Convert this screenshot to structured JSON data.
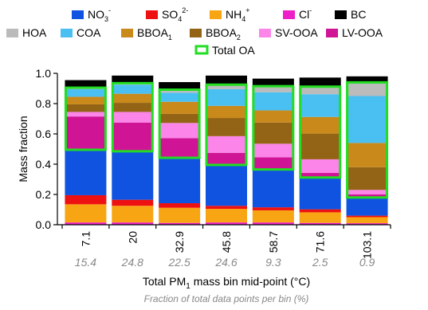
{
  "chart_data": {
    "type": "bar",
    "stacked": true,
    "categories": [
      "7.1",
      "20",
      "32.9",
      "45.8",
      "58.7",
      "71.6",
      "103.1"
    ],
    "category_fractions": [
      "15.4",
      "24.8",
      "22.5",
      "24.6",
      "9.3",
      "2.5",
      "0.9"
    ],
    "xlabel": {
      "prefix": "Total PM",
      "sub": "1",
      "suffix": " mass bin mid-point (°C)"
    },
    "secondary_xlabel": "Fraction of total data points per bin (%)",
    "ylabel": "Mass fraction",
    "ylim": [
      0,
      1
    ],
    "yticks": [
      "0.0",
      "0.2",
      "0.4",
      "0.6",
      "0.8",
      "1.0"
    ],
    "legend_position": "top",
    "series": [
      {
        "key": "no3",
        "name": "NO3",
        "sup": "-",
        "color": "#1053e0",
        "values": [
          0.3,
          0.32,
          0.3,
          0.27,
          0.25,
          0.21,
          0.12
        ]
      },
      {
        "key": "so4",
        "name": "SO4",
        "sup": "2-",
        "color": "#ee1111",
        "values": [
          0.06,
          0.04,
          0.03,
          0.02,
          0.02,
          0.02,
          0.01
        ]
      },
      {
        "key": "nh4",
        "name": "NH4",
        "sup": "+",
        "color": "#f8a514",
        "values": [
          0.12,
          0.11,
          0.1,
          0.09,
          0.08,
          0.07,
          0.04
        ]
      },
      {
        "key": "cl",
        "name": "Cl",
        "sup": "-",
        "color": "#ee1ec8",
        "values": [
          0.015,
          0.015,
          0.012,
          0.015,
          0.015,
          0.012,
          0.01
        ]
      },
      {
        "key": "bc",
        "name": "BC",
        "sup": "",
        "color": "#000000",
        "values": [
          0.05,
          0.05,
          0.05,
          0.06,
          0.05,
          0.06,
          0.04
        ]
      },
      {
        "key": "hoa",
        "name": "HOA",
        "sup": "",
        "color": "#bbbbbb",
        "values": [
          0.01,
          0.01,
          0.02,
          0.03,
          0.04,
          0.05,
          0.09
        ]
      },
      {
        "key": "coa",
        "name": "COA",
        "sup": "",
        "color": "#49bff2",
        "values": [
          0.05,
          0.06,
          0.06,
          0.11,
          0.12,
          0.15,
          0.31
        ]
      },
      {
        "key": "bboa1",
        "name": "BBOA1",
        "sup": "",
        "color": "#c9891b",
        "values": [
          0.05,
          0.06,
          0.08,
          0.08,
          0.08,
          0.11,
          0.16
        ]
      },
      {
        "key": "bboa2",
        "name": "BBOA2",
        "sup": "",
        "color": "#936416",
        "values": [
          0.05,
          0.06,
          0.06,
          0.12,
          0.14,
          0.17,
          0.15
        ]
      },
      {
        "key": "svooa",
        "name": "SV-OOA",
        "sup": "",
        "color": "#fb85e8",
        "values": [
          0.03,
          0.07,
          0.1,
          0.11,
          0.09,
          0.09,
          0.03
        ]
      },
      {
        "key": "lvooa",
        "name": "LV-OOA",
        "sup": "",
        "color": "#cf1495",
        "values": [
          0.22,
          0.19,
          0.13,
          0.08,
          0.08,
          0.03,
          0.02
        ]
      }
    ],
    "outline": {
      "name": "Total OA",
      "color": "#22dd22"
    }
  }
}
